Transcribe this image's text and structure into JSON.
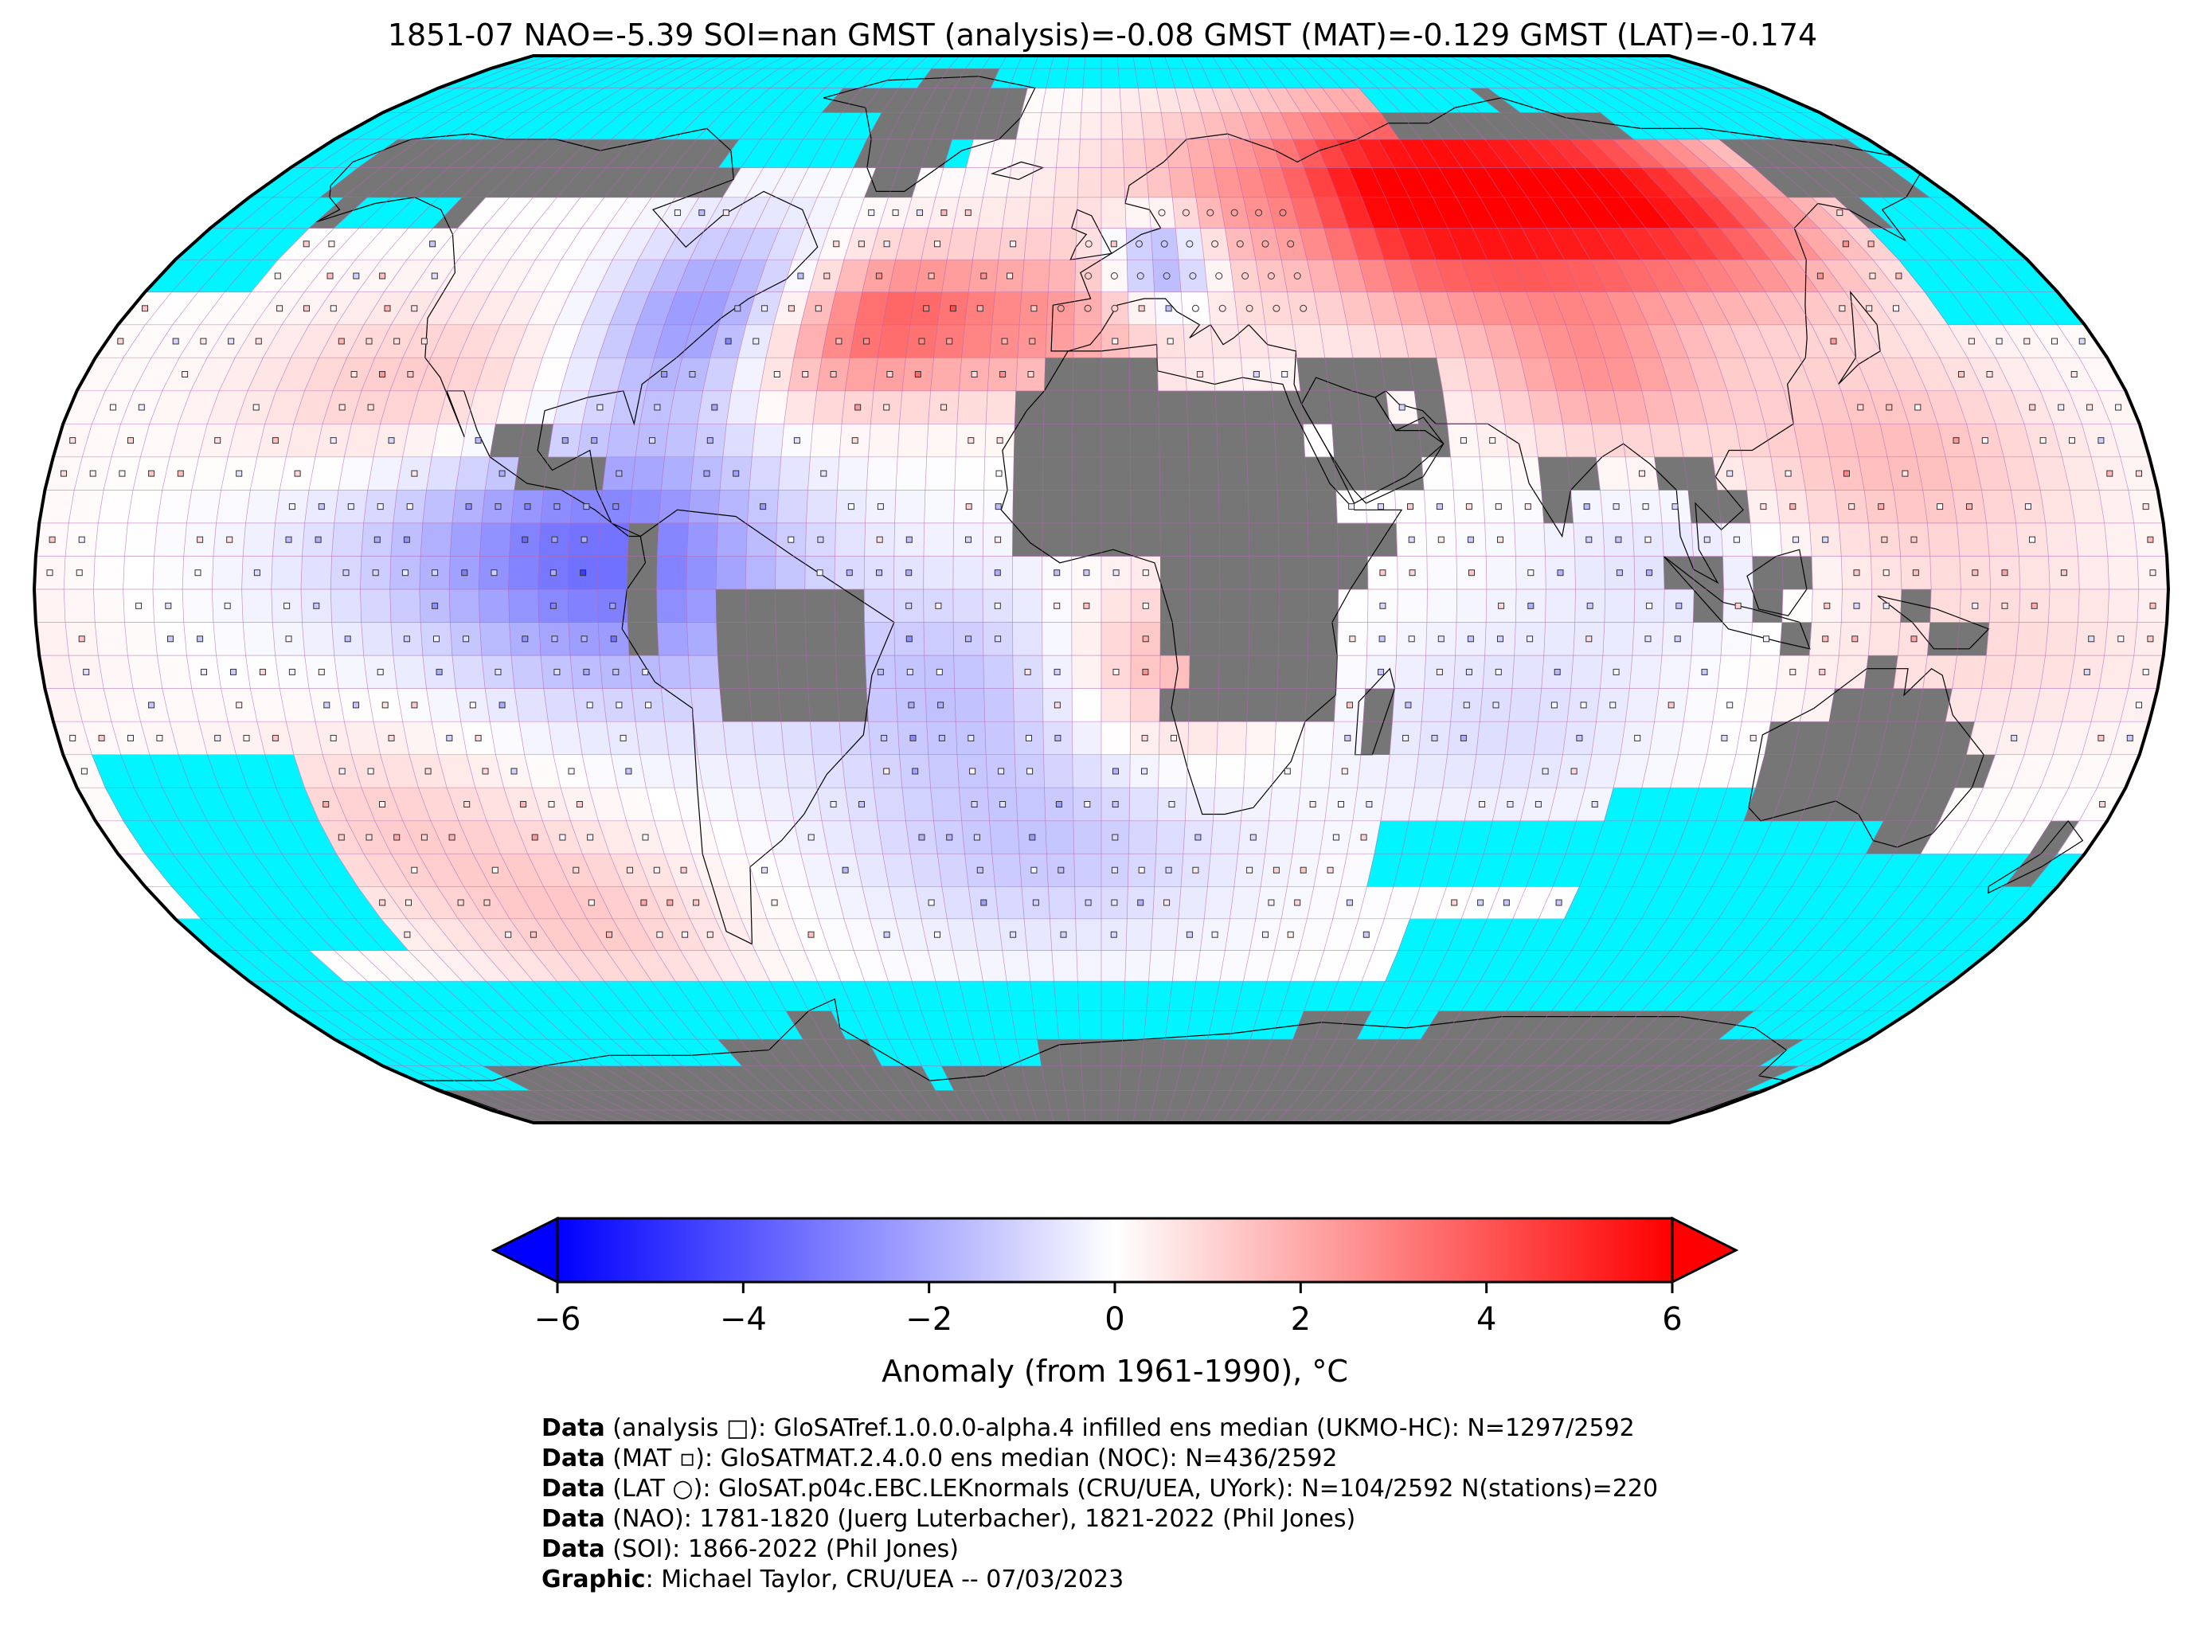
{
  "title": "1851-07 NAO=-5.39 SOI=nan GMST (analysis)=-0.08 GMST (MAT)=-0.129 GMST (LAT)=-0.174",
  "colors": {
    "ocean_missing": "#00f5ff",
    "land_missing": "#767676",
    "anomaly_cold": "#0000ff",
    "anomaly_neutral": "#ffffff",
    "anomaly_warm": "#ff0000",
    "grid_line": "#b266b2",
    "coast": "#000000"
  },
  "map": {
    "projection": "Robinson",
    "grid_resolution_deg": 5
  },
  "colorbar": {
    "min": -6,
    "max": 6,
    "ticks": [
      "−6",
      "−4",
      "−2",
      "0",
      "2",
      "4",
      "6"
    ],
    "tick_values": [
      -6,
      -4,
      -2,
      0,
      2,
      4,
      6
    ],
    "label": "Anomaly (from 1961-1990), °C",
    "extend": "both"
  },
  "credits": [
    {
      "bold": "Data",
      "text": " (analysis □): GloSATref.1.0.0.0-alpha.4 infilled ens median (UKMO-HC): N=1297/2592"
    },
    {
      "bold": "Data",
      "text": " (MAT ▫): GloSATMAT.2.4.0.0 ens median (NOC): N=436/2592"
    },
    {
      "bold": "Data",
      "text": " (LAT ○): GloSAT.p04c.EBC.LEKnormals (CRU/UEA, UYork): N=104/2592 N(stations)=220"
    },
    {
      "bold": "Data",
      "text": " (NAO): 1781-1820 (Juerg Luterbacher), 1821-2022 (Phil Jones)"
    },
    {
      "bold": "Data",
      "text": " (SOI): 1866-2022 (Phil Jones)"
    },
    {
      "bold": "Graphic",
      "text": ": Michael Taylor, CRU/UEA -- 07/03/2023"
    }
  ]
}
